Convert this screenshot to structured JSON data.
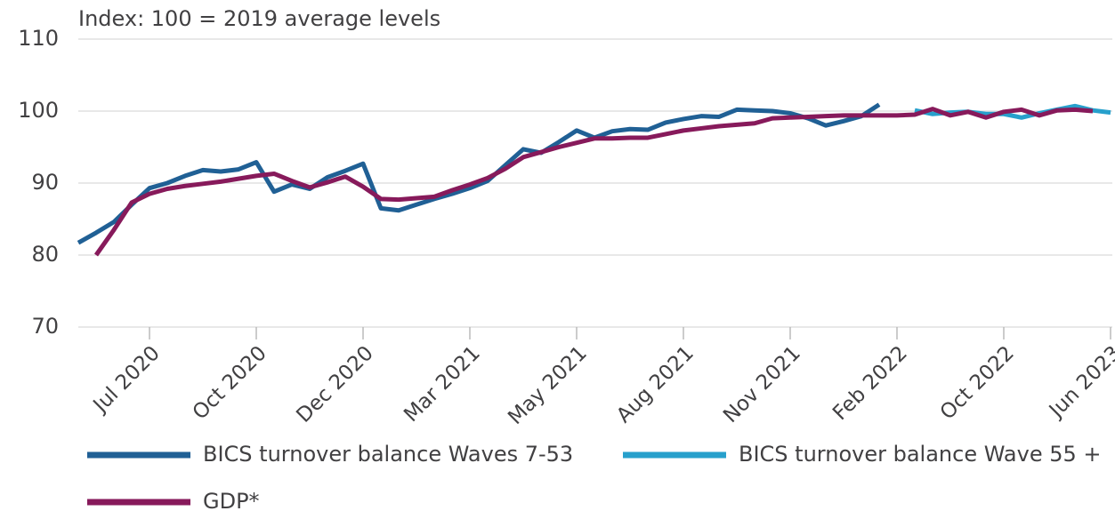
{
  "chart_data": {
    "type": "line",
    "subtitle": "Index: 100 = 2019 average levels",
    "categories": [
      null,
      null,
      null,
      null,
      "Jul 2020",
      null,
      null,
      null,
      null,
      null,
      "Oct 2020",
      null,
      null,
      null,
      null,
      null,
      "Dec 2020",
      null,
      null,
      null,
      null,
      null,
      "Mar 2021",
      null,
      null,
      null,
      null,
      null,
      "May 2021",
      null,
      null,
      null,
      null,
      null,
      "Aug 2021",
      null,
      null,
      null,
      null,
      null,
      "Nov 2021",
      null,
      null,
      null,
      null,
      null,
      "Feb 2022",
      null,
      null,
      null,
      null,
      null,
      "Oct 2022",
      null,
      null,
      null,
      null,
      null,
      "Jun 2023"
    ],
    "series": [
      {
        "name": "BICS turnover balance Waves 7-53",
        "color": "#206095",
        "values": [
          81.7,
          83.1,
          84.6,
          87.0,
          89.3,
          90.0,
          91.0,
          91.8,
          91.6,
          91.9,
          92.9,
          88.8,
          89.8,
          89.2,
          90.8,
          91.7,
          92.7,
          86.5,
          86.2,
          87.0,
          87.8,
          88.5,
          89.3,
          90.3,
          92.5,
          94.7,
          94.2,
          95.7,
          97.3,
          96.3,
          97.2,
          97.5,
          97.4,
          98.4,
          98.9,
          99.3,
          99.2,
          100.2,
          100.1,
          100.0,
          99.7,
          99.0,
          98.0,
          98.6,
          99.3,
          100.9,
          null,
          null,
          null,
          null,
          null,
          null,
          null,
          null,
          null,
          null,
          null,
          null,
          null
        ]
      },
      {
        "name": "BICS turnover balance Wave 55 +",
        "color": "#27a0cc",
        "values": [
          null,
          null,
          null,
          null,
          null,
          null,
          null,
          null,
          null,
          null,
          null,
          null,
          null,
          null,
          null,
          null,
          null,
          null,
          null,
          null,
          null,
          null,
          null,
          null,
          null,
          null,
          null,
          null,
          null,
          null,
          null,
          null,
          null,
          null,
          null,
          null,
          null,
          null,
          null,
          null,
          null,
          null,
          null,
          null,
          null,
          null,
          null,
          100.1,
          99.6,
          99.8,
          99.9,
          99.6,
          99.6,
          99.1,
          99.7,
          100.2,
          100.7,
          100.1,
          99.8
        ]
      },
      {
        "name": "GDP*",
        "color": "#871a5b",
        "values": [
          null,
          80.0,
          83.5,
          87.3,
          88.5,
          89.2,
          89.6,
          89.9,
          90.2,
          90.6,
          91.0,
          91.3,
          90.3,
          89.4,
          90.1,
          90.9,
          89.5,
          87.8,
          87.7,
          87.9,
          88.1,
          89.0,
          89.8,
          90.7,
          92.0,
          93.6,
          94.3,
          95.0,
          95.6,
          96.2,
          96.2,
          96.3,
          96.3,
          96.8,
          97.3,
          97.6,
          97.9,
          98.1,
          98.3,
          99.0,
          99.1,
          99.2,
          99.3,
          99.4,
          99.4,
          99.4,
          99.4,
          99.5,
          100.3,
          99.4,
          99.9,
          99.1,
          99.9,
          100.2,
          99.4,
          100.1,
          100.2,
          100.0,
          null
        ]
      }
    ],
    "ylim": [
      70,
      110
    ],
    "yticks": [
      70,
      80,
      90,
      100,
      110
    ],
    "grid": true
  }
}
